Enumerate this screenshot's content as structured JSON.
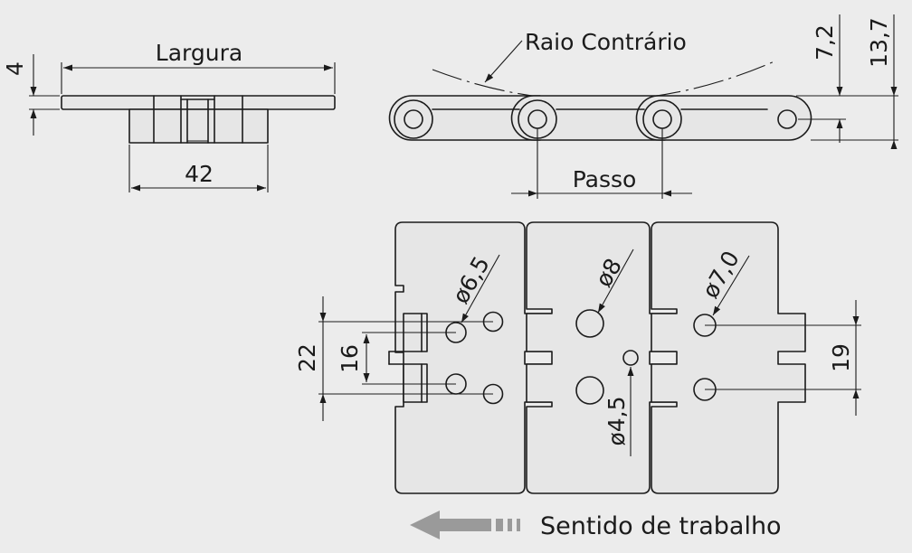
{
  "labels": {
    "largura": "Largura",
    "thickness": "4",
    "width_value": "42",
    "raio": "Raio Contrário",
    "height_small": "7,2",
    "height_total": "13,7",
    "passo": "Passo",
    "d65": "ø6,5",
    "d8": "ø8",
    "d70": "ø7,0",
    "d45": "ø4,5",
    "dim22": "22",
    "dim16": "16",
    "dim19": "19",
    "direction": "Sentido de trabalho"
  },
  "colors": {
    "background": "#ececec",
    "line": "#1b1b1b",
    "arrow": "#9a9a9a"
  },
  "icons": {
    "direction": "arrow-left-icon"
  }
}
